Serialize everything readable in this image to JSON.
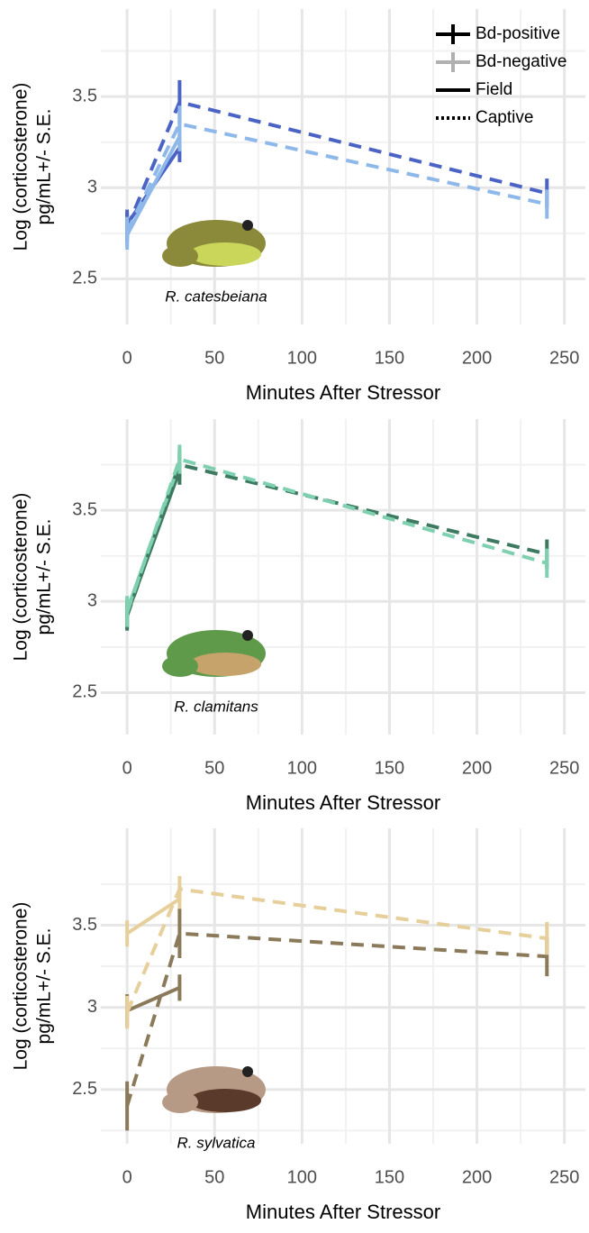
{
  "chart_data": [
    {
      "type": "line",
      "x_label": "Minutes After Stressor",
      "y_label": [
        "Log (corticosterone)",
        "pg/mL+/- S.E."
      ],
      "annotation": "R. catesbeiana",
      "x": [
        0,
        30,
        240
      ],
      "xlim": [
        -15,
        262
      ],
      "xticks": [
        0,
        50,
        100,
        150,
        200,
        250
      ],
      "ylim": [
        2.25,
        3.98
      ],
      "yticks": [
        2.5,
        3.0,
        3.5
      ],
      "grid": true,
      "series": [
        {
          "color": "#4a63c4",
          "linestyle": "solid",
          "values": [
            2.8,
            3.22,
            null
          ],
          "errors": [
            0.08,
            0.08,
            null
          ]
        },
        {
          "color": "#8fb8ea",
          "linestyle": "solid",
          "values": [
            2.74,
            3.28,
            null
          ],
          "errors": [
            0.08,
            0.08,
            null
          ]
        },
        {
          "color": "#4a63c4",
          "linestyle": "dashed",
          "values": [
            2.78,
            3.47,
            2.97
          ],
          "errors": [
            0.08,
            0.12,
            0.08
          ]
        },
        {
          "color": "#8fb8ea",
          "linestyle": "dashed",
          "values": [
            2.76,
            3.35,
            2.91
          ],
          "errors": [
            0.08,
            0.1,
            0.08
          ]
        }
      ],
      "legend": {
        "position": "top-right",
        "entries": [
          {
            "label": "Bd-positive",
            "color": "#000000",
            "linestyle": "solid",
            "errorbar": true
          },
          {
            "label": "Bd-negative",
            "color": "#b0b0b0",
            "linestyle": "solid",
            "errorbar": true
          },
          {
            "label": "Field",
            "color": "#000000",
            "linestyle": "solid",
            "errorbar": false
          },
          {
            "label": "Captive",
            "color": "#000000",
            "linestyle": "dotted",
            "errorbar": false
          }
        ]
      }
    },
    {
      "type": "line",
      "x_label": "Minutes After Stressor",
      "y_label": [
        "Log (corticosterone)",
        "pg/mL+/- S.E."
      ],
      "annotation": "R. clamitans",
      "x": [
        0,
        30,
        240
      ],
      "xlim": [
        -15,
        262
      ],
      "xticks": [
        0,
        50,
        100,
        150,
        200,
        250
      ],
      "ylim": [
        2.27,
        4.0
      ],
      "yticks": [
        2.5,
        3.0,
        3.5
      ],
      "grid": true,
      "series": [
        {
          "color": "#3d7a60",
          "linestyle": "solid",
          "values": [
            2.93,
            3.72,
            null
          ],
          "errors": [
            0.08,
            0.08,
            null
          ]
        },
        {
          "color": "#7fd0b0",
          "linestyle": "solid",
          "values": [
            2.95,
            3.76,
            null
          ],
          "errors": [
            0.08,
            0.08,
            null
          ]
        },
        {
          "color": "#3d7a60",
          "linestyle": "dashed",
          "values": [
            2.92,
            3.75,
            3.26
          ],
          "errors": [
            0.08,
            0.08,
            0.08
          ]
        },
        {
          "color": "#7fd0b0",
          "linestyle": "dashed",
          "values": [
            2.94,
            3.78,
            3.21
          ],
          "errors": [
            0.08,
            0.08,
            0.08
          ]
        }
      ]
    },
    {
      "type": "line",
      "x_label": "Minutes After Stressor",
      "y_label": [
        "Log (corticosterone)",
        "pg/mL+/- S.E."
      ],
      "annotation": "R. sylvatica",
      "x": [
        0,
        30,
        240
      ],
      "xlim": [
        -15,
        262
      ],
      "xticks": [
        0,
        50,
        100,
        150,
        200,
        250
      ],
      "ylim": [
        2.17,
        4.09
      ],
      "yticks": [
        2.5,
        3.0,
        3.5
      ],
      "grid": true,
      "series": [
        {
          "color": "#8b7a5a",
          "linestyle": "solid",
          "values": [
            2.98,
            3.12,
            null
          ],
          "errors": [
            0.1,
            0.08,
            null
          ]
        },
        {
          "color": "#e6cf9a",
          "linestyle": "solid",
          "values": [
            3.45,
            3.66,
            null
          ],
          "errors": [
            0.08,
            0.08,
            null
          ]
        },
        {
          "color": "#8b7a5a",
          "linestyle": "dashed",
          "values": [
            2.4,
            3.45,
            3.31
          ],
          "errors": [
            0.15,
            0.15,
            0.12
          ]
        },
        {
          "color": "#e6cf9a",
          "linestyle": "dashed",
          "values": [
            2.97,
            3.72,
            3.42
          ],
          "errors": [
            0.1,
            0.08,
            0.1
          ]
        }
      ]
    }
  ]
}
